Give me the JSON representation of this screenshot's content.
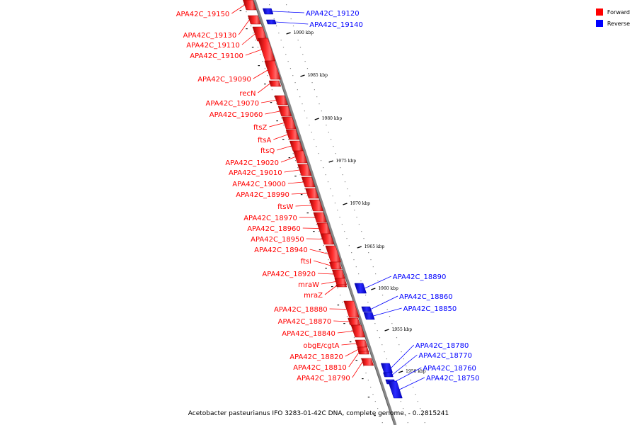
{
  "legend": {
    "forward_label": "Forward",
    "reverse_label": "Reverse",
    "forward_color": "#ff0000",
    "reverse_color": "#0000ff"
  },
  "caption": "Acetobacter pasteurianus IFO 3283-01-42C DNA, complete genome. - 0..2815241",
  "genome_window": {
    "unit": "kbp",
    "ticks": [
      "1990 kbp",
      "1985 kbp",
      "1980 kbp",
      "1975 kbp",
      "1970 kbp",
      "1965 kbp",
      "1960 kbp",
      "1955 kbp",
      "1950 kbp"
    ]
  },
  "genes": [
    {
      "name": "APA42C_19150",
      "strand": "forward"
    },
    {
      "name": "APA42C_19140",
      "strand": "reverse"
    },
    {
      "name": "APA42C_19120",
      "strand": "reverse"
    },
    {
      "name": "APA42C_19130",
      "strand": "forward"
    },
    {
      "name": "APA42C_19110",
      "strand": "forward"
    },
    {
      "name": "APA42C_19100",
      "strand": "forward"
    },
    {
      "name": "APA42C_19090",
      "strand": "forward"
    },
    {
      "name": "recN",
      "strand": "forward"
    },
    {
      "name": "APA42C_19070",
      "strand": "forward"
    },
    {
      "name": "APA42C_19060",
      "strand": "forward"
    },
    {
      "name": "ftsZ",
      "strand": "forward"
    },
    {
      "name": "ftsA",
      "strand": "forward"
    },
    {
      "name": "ftsQ",
      "strand": "forward"
    },
    {
      "name": "APA42C_19020",
      "strand": "forward"
    },
    {
      "name": "APA42C_19010",
      "strand": "forward"
    },
    {
      "name": "APA42C_19000",
      "strand": "forward"
    },
    {
      "name": "APA42C_18990",
      "strand": "forward"
    },
    {
      "name": "ftsW",
      "strand": "forward"
    },
    {
      "name": "APA42C_18970",
      "strand": "forward"
    },
    {
      "name": "APA42C_18960",
      "strand": "forward"
    },
    {
      "name": "APA42C_18950",
      "strand": "forward"
    },
    {
      "name": "APA42C_18940",
      "strand": "forward"
    },
    {
      "name": "ftsI",
      "strand": "forward"
    },
    {
      "name": "APA42C_18920",
      "strand": "forward"
    },
    {
      "name": "mraW",
      "strand": "forward"
    },
    {
      "name": "mraZ",
      "strand": "forward"
    },
    {
      "name": "APA42C_18890",
      "strand": "reverse"
    },
    {
      "name": "APA42C_18880",
      "strand": "forward"
    },
    {
      "name": "APA42C_18860",
      "strand": "reverse"
    },
    {
      "name": "APA42C_18850",
      "strand": "reverse"
    },
    {
      "name": "APA42C_18870",
      "strand": "forward"
    },
    {
      "name": "APA42C_18840",
      "strand": "forward"
    },
    {
      "name": "obgE/cgtA",
      "strand": "forward"
    },
    {
      "name": "APA42C_18820",
      "strand": "forward"
    },
    {
      "name": "APA42C_18810",
      "strand": "forward"
    },
    {
      "name": "APA42C_18790",
      "strand": "forward"
    },
    {
      "name": "APA42C_18780",
      "strand": "reverse"
    },
    {
      "name": "APA42C_18770",
      "strand": "reverse"
    },
    {
      "name": "APA42C_18760",
      "strand": "reverse"
    },
    {
      "name": "APA42C_18750",
      "strand": "reverse"
    }
  ]
}
